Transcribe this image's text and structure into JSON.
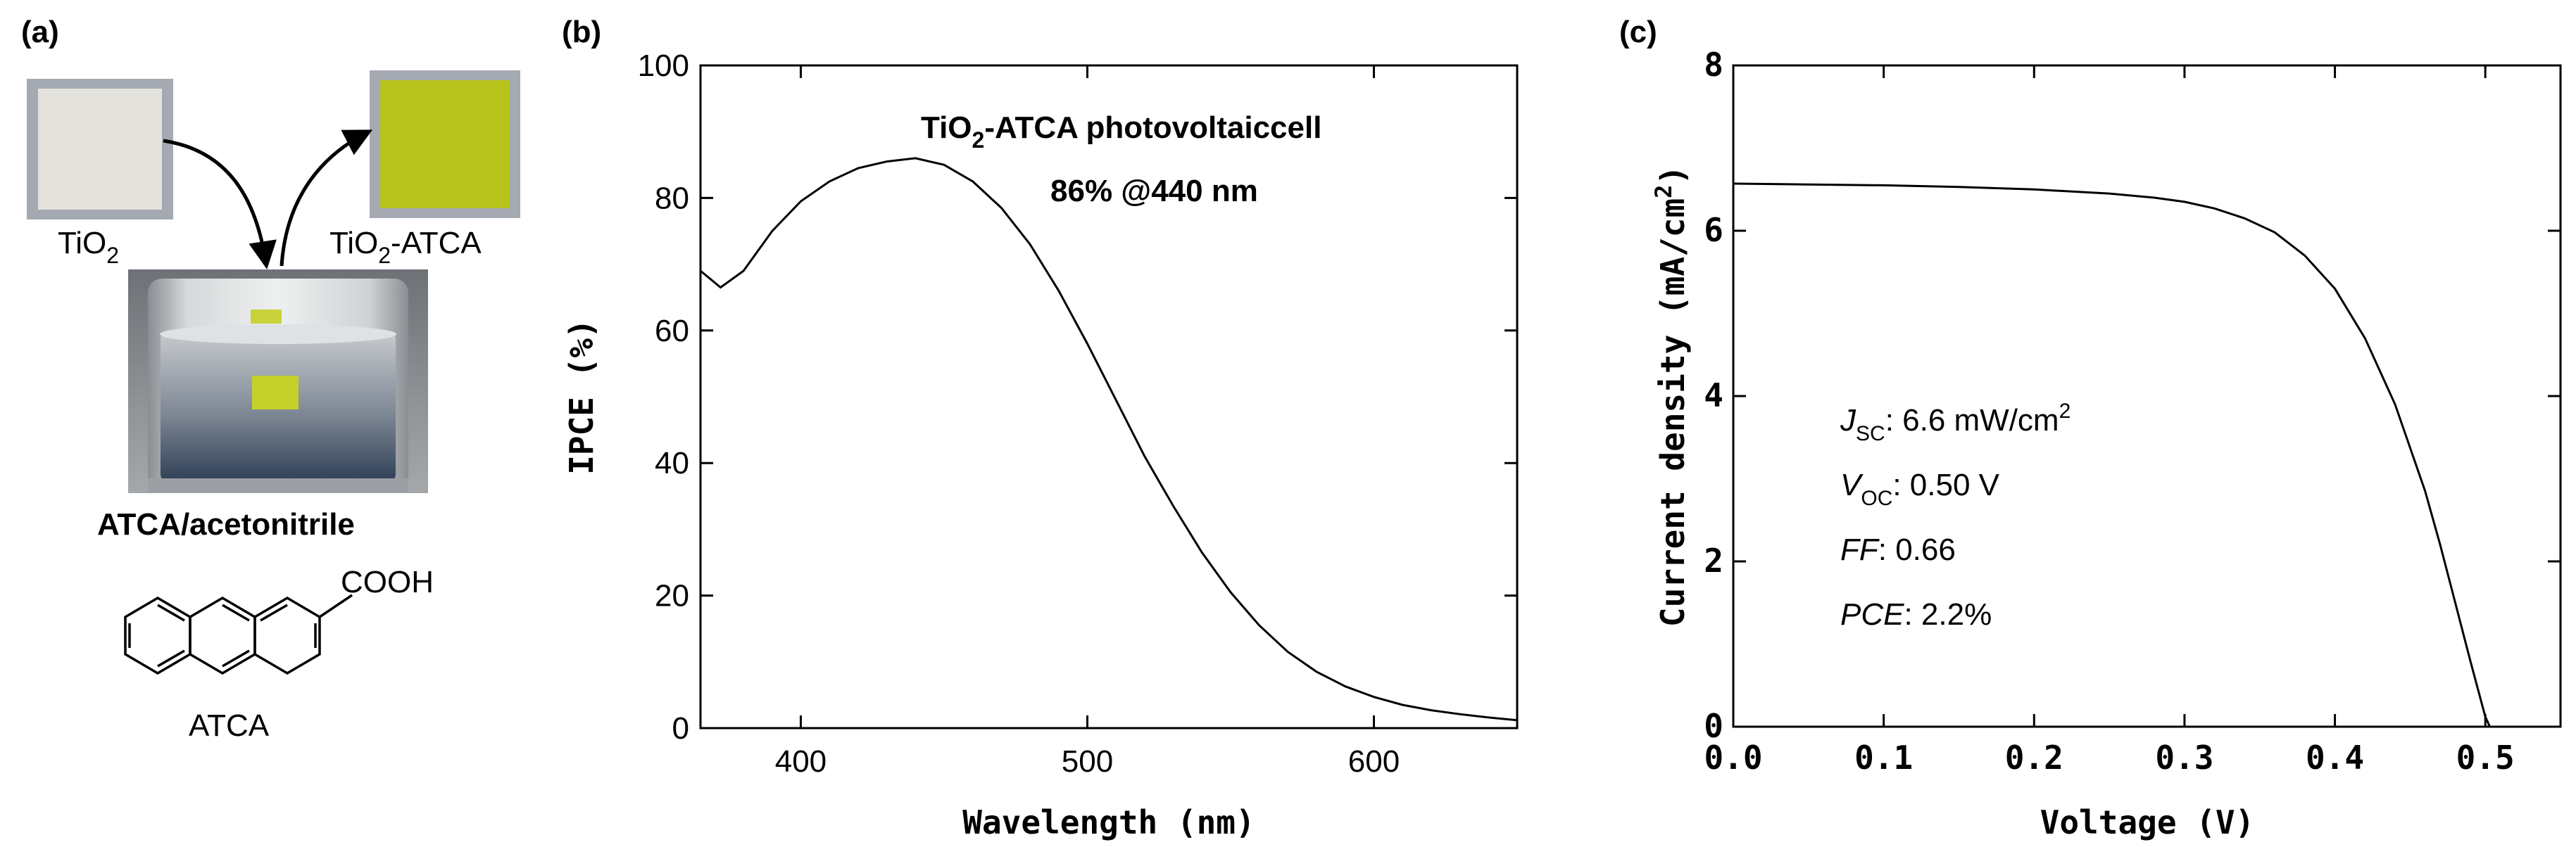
{
  "panel_a": {
    "label": "(a)",
    "tio2_label_main": "TiO",
    "tio2_label_sub": "2",
    "tio2_atca_label_main": "TiO",
    "tio2_atca_label_sub": "2",
    "tio2_atca_label_rest": "-ATCA",
    "vial_caption": "ATCA/acetonitrile",
    "molecule_group": "COOH",
    "molecule_name": "ATCA",
    "colors": {
      "tio2_film": "#e4e2dc",
      "atca_film": "#b8c41c",
      "film_frame": "#9fa4ad"
    }
  },
  "chart_data": [
    {
      "panel_label": "(b)",
      "type": "line",
      "title": "",
      "xlabel": "Wavelength (nm)",
      "ylabel": "IPCE (%)",
      "xlim": [
        365,
        650
      ],
      "ylim": [
        0,
        100
      ],
      "xticks": [
        400,
        500,
        600
      ],
      "yticks": [
        0,
        20,
        40,
        60,
        80,
        100
      ],
      "grid": false,
      "annotation_line1_main": "TiO",
      "annotation_line1_sub": "2",
      "annotation_line1_rest": "-ATCA photovoltaiccell",
      "annotation_line2": "86% @440 nm",
      "series": [
        {
          "name": "IPCE",
          "x": [
            365,
            372,
            380,
            390,
            400,
            410,
            420,
            430,
            440,
            450,
            460,
            470,
            480,
            490,
            500,
            510,
            520,
            530,
            540,
            550,
            560,
            570,
            580,
            590,
            600,
            610,
            620,
            630,
            640,
            650
          ],
          "y": [
            69,
            66.5,
            69,
            75,
            79.5,
            82.5,
            84.5,
            85.5,
            86,
            85,
            82.5,
            78.5,
            73,
            66,
            58,
            49.5,
            41,
            33.5,
            26.5,
            20.5,
            15.5,
            11.5,
            8.5,
            6.3,
            4.7,
            3.5,
            2.7,
            2.1,
            1.6,
            1.2
          ]
        }
      ]
    },
    {
      "panel_label": "(c)",
      "type": "line",
      "title": "",
      "xlabel": "Voltage (V)",
      "ylabel": "Current density (mA/cm",
      "ylabel_sup": "2",
      "ylabel_close": ")",
      "xlim": [
        0,
        0.55
      ],
      "ylim": [
        0,
        8
      ],
      "xticks": [
        "0.0",
        "0.1",
        "0.2",
        "0.3",
        "0.4",
        "0.5"
      ],
      "yticks": [
        "0",
        "2",
        "4",
        "6",
        "8"
      ],
      "grid": false,
      "params": [
        {
          "name": "J",
          "sub": "SC",
          "value": ": 6.6 mW/cm",
          "sup": "2",
          "italic": true
        },
        {
          "name": "V",
          "sub": "OC",
          "value": ": 0.50 V",
          "sup": "",
          "italic": true
        },
        {
          "name": "FF",
          "sub": "",
          "value": ": 0.66",
          "sup": "",
          "italic": true
        },
        {
          "name": "PCE",
          "sub": "",
          "value": ": 2.2%",
          "sup": "",
          "italic": true
        }
      ],
      "series": [
        {
          "name": "J-V",
          "x": [
            0.0,
            0.05,
            0.1,
            0.15,
            0.2,
            0.25,
            0.28,
            0.3,
            0.32,
            0.34,
            0.36,
            0.38,
            0.4,
            0.42,
            0.44,
            0.46,
            0.47,
            0.48,
            0.49,
            0.5,
            0.503
          ],
          "y": [
            6.57,
            6.56,
            6.55,
            6.53,
            6.5,
            6.45,
            6.4,
            6.35,
            6.27,
            6.15,
            5.98,
            5.7,
            5.3,
            4.7,
            3.9,
            2.85,
            2.2,
            1.5,
            0.8,
            0.12,
            0.0
          ]
        }
      ]
    }
  ]
}
